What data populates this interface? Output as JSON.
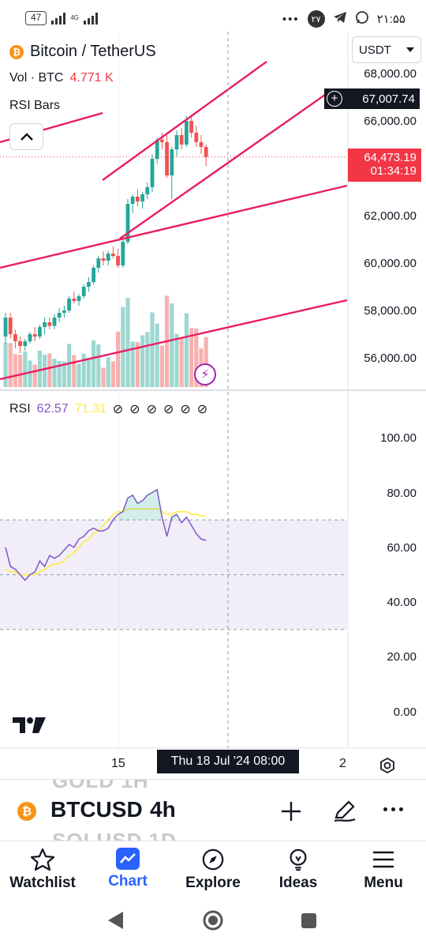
{
  "status_bar": {
    "battery": "47",
    "network": "4G",
    "notification_count": "۲۷",
    "time": "۲۱:۵۵"
  },
  "chart": {
    "symbol_title": "Bitcoin / TetherUS",
    "volume_label": "Vol · BTC",
    "volume_value": "4.771 K",
    "indicator_label": "RSI Bars",
    "currency": "USDT",
    "price_scale": [
      "68,000.00",
      "66,000.00",
      "62,000.00",
      "60,000.00",
      "58,000.00",
      "56,000.00"
    ],
    "crosshair_price": "67,007.74",
    "last_price": "64,473.19",
    "countdown": "01:34:19",
    "rsi_label": "RSI",
    "rsi_value": "62.57",
    "rsi_ma_value": "71.31",
    "rsi_scale": [
      "100.00",
      "80.00",
      "60.00",
      "40.00",
      "20.00",
      "0.00"
    ],
    "time_ticks": [
      "15",
      "2"
    ],
    "crosshair_time": "Thu 18 Jul '24   08:00",
    "colors": {
      "up": "#26a69a",
      "down": "#ef5350",
      "trendline": "#e91e63",
      "rsi": "#7e57c2",
      "rsi_ma": "#ffeb3b",
      "last_price": "#f23645"
    }
  },
  "chart_data": {
    "type": "candlestick",
    "ylim": [
      55000,
      69000
    ],
    "candles": [
      [
        56900,
        57900,
        56600,
        57700
      ],
      [
        57700,
        57900,
        56800,
        57000
      ],
      [
        57000,
        57200,
        56400,
        56700
      ],
      [
        56700,
        56900,
        56200,
        56500
      ],
      [
        56500,
        56800,
        56300,
        56700
      ],
      [
        56700,
        57100,
        56600,
        57000
      ],
      [
        57000,
        57300,
        56700,
        56900
      ],
      [
        56900,
        57400,
        56800,
        57300
      ],
      [
        57300,
        57700,
        57000,
        57500
      ],
      [
        57500,
        57700,
        57200,
        57350
      ],
      [
        57350,
        57850,
        57200,
        57700
      ],
      [
        57700,
        58100,
        57500,
        57900
      ],
      [
        57900,
        58200,
        57700,
        58000
      ],
      [
        58000,
        58600,
        57900,
        58500
      ],
      [
        58500,
        58800,
        58300,
        58400
      ],
      [
        58400,
        58700,
        58200,
        58600
      ],
      [
        58600,
        59100,
        58500,
        59000
      ],
      [
        59000,
        59400,
        58800,
        59200
      ],
      [
        59200,
        59900,
        59100,
        59800
      ],
      [
        59800,
        60300,
        59600,
        60200
      ],
      [
        60200,
        60500,
        59900,
        60100
      ],
      [
        60100,
        60500,
        59900,
        60400
      ],
      [
        60400,
        60700,
        60200,
        60300
      ],
      [
        60300,
        60600,
        59800,
        59900
      ],
      [
        59900,
        61000,
        59800,
        60900
      ],
      [
        60900,
        62700,
        60800,
        62500
      ],
      [
        62500,
        62900,
        62100,
        62800
      ],
      [
        62800,
        63100,
        62400,
        62600
      ],
      [
        62600,
        63000,
        62300,
        62900
      ],
      [
        62900,
        63400,
        62700,
        63200
      ],
      [
        63200,
        64600,
        63000,
        64400
      ],
      [
        64400,
        65300,
        64200,
        65200
      ],
      [
        65200,
        65500,
        64800,
        65100
      ],
      [
        65100,
        65400,
        63600,
        63700
      ],
      [
        63700,
        64900,
        62700,
        64800
      ],
      [
        64800,
        65600,
        64500,
        65400
      ],
      [
        65400,
        65700,
        64800,
        65000
      ],
      [
        65000,
        66200,
        64900,
        66000
      ],
      [
        66000,
        66200,
        65300,
        65500
      ],
      [
        65500,
        65800,
        64900,
        65100
      ],
      [
        65100,
        65400,
        64600,
        64900
      ],
      [
        64900,
        65000,
        64100,
        64473
      ]
    ],
    "rsi": [
      60,
      53,
      52,
      50,
      48,
      50,
      51,
      55,
      53,
      57,
      56,
      57,
      59,
      61,
      60,
      63,
      64,
      66,
      67,
      66,
      66,
      67,
      70,
      72,
      73,
      78,
      79,
      76,
      77,
      79,
      80,
      81,
      71,
      64,
      71,
      72,
      69,
      71,
      68,
      65,
      63,
      62.57
    ],
    "rsi_ma": [
      52,
      51,
      51,
      50,
      50,
      50,
      50,
      51,
      52,
      53,
      54,
      54,
      55,
      57,
      58,
      60,
      62,
      63,
      65,
      66,
      68,
      70,
      72,
      73,
      73,
      74,
      74,
      74,
      74,
      74,
      74,
      74,
      73,
      72,
      72,
      73,
      73,
      73,
      72,
      72,
      71.5,
      71.31
    ]
  },
  "symbol_bar": {
    "ghost_above": "GOLD   1H",
    "symbol": "BTCUSD",
    "timeframe": "4h",
    "ghost_below": "SOLUSD   1D"
  },
  "bottom_nav": [
    {
      "label": "Watchlist",
      "icon": "star-icon"
    },
    {
      "label": "Chart",
      "icon": "chart-icon",
      "active": true
    },
    {
      "label": "Explore",
      "icon": "compass-icon"
    },
    {
      "label": "Ideas",
      "icon": "lightbulb-icon"
    },
    {
      "label": "Menu",
      "icon": "hamburger-icon"
    }
  ]
}
